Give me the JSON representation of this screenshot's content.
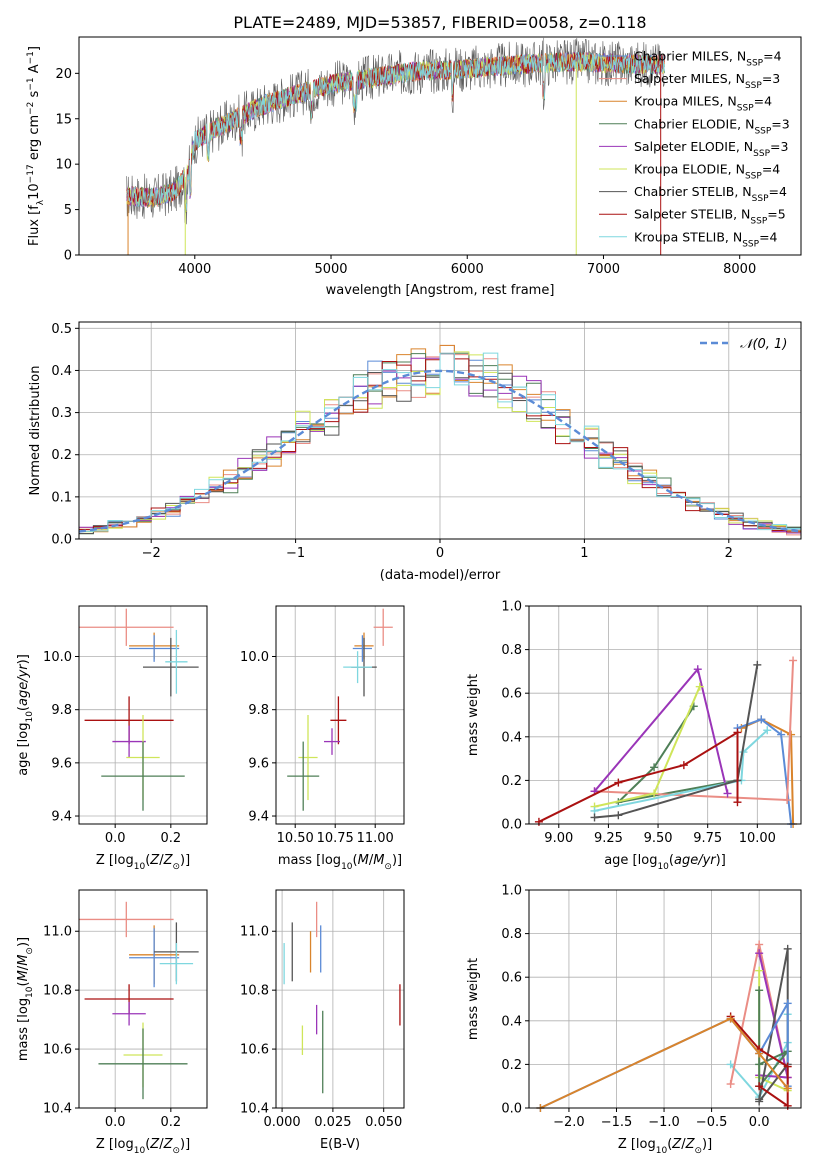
{
  "figure": {
    "title": "PLATE=2489, MJD=53857, FIBERID=0058, z=0.118"
  },
  "colors": {
    "chabrier_miles": "#5b8bd6",
    "salpeter_miles": "#ea8d85",
    "kroupa_miles": "#d9842c",
    "chabrier_elodie": "#4f7f57",
    "salpeter_elodie": "#9a35b8",
    "kroupa_elodie": "#cfe55a",
    "chabrier_stelib": "#555555",
    "salpeter_stelib": "#aa1111",
    "kroupa_stelib": "#7fd7df"
  },
  "chart_data": [
    {
      "id": "spectrum",
      "type": "line",
      "title": "PLATE=2489, MJD=53857, FIBERID=0058, z=0.118",
      "xlabel": "wavelength [Angstrom, rest frame]",
      "ylabel": "Flux [f_λ 10^-17 erg cm^-2 s^-1 A^-1]",
      "xlim": [
        3150,
        8450
      ],
      "ylim": [
        0,
        24
      ],
      "xticks": [
        4000,
        5000,
        6000,
        7000,
        8000
      ],
      "yticks": [
        0,
        5,
        10,
        15,
        20
      ],
      "legend_position": "top-right",
      "series": [
        {
          "name": "Chabrier MILES, N_SSP=4",
          "color": "#5b8bd6"
        },
        {
          "name": "Salpeter MILES, N_SSP=3",
          "color": "#ea8d85"
        },
        {
          "name": "Kroupa MILES, N_SSP=4",
          "color": "#d9842c"
        },
        {
          "name": "Chabrier ELODIE, N_SSP=3",
          "color": "#4f7f57"
        },
        {
          "name": "Salpeter ELODIE, N_SSP=3",
          "color": "#9a35b8"
        },
        {
          "name": "Kroupa ELODIE, N_SSP=4",
          "color": "#cfe55a"
        },
        {
          "name": "Chabrier STELIB, N_SSP=4",
          "color": "#555555"
        },
        {
          "name": "Salpeter STELIB, N_SSP=5",
          "color": "#aa1111"
        },
        {
          "name": "Kroupa STELIB, N_SSP=4",
          "color": "#7fd7df"
        }
      ],
      "continuum": {
        "x": [
          3500,
          3700,
          3850,
          3950,
          4000,
          4100,
          4300,
          4500,
          4700,
          5000,
          5300,
          5600,
          6000,
          6400,
          6800,
          7200,
          7450
        ],
        "y": [
          6.5,
          6.3,
          7.0,
          9.0,
          12.5,
          13.5,
          15.0,
          16.5,
          17.5,
          18.8,
          19.5,
          20.2,
          20.5,
          21.0,
          21.3,
          21.0,
          21.0
        ]
      },
      "dips": [
        {
          "x": 3510,
          "y": 0
        },
        {
          "x": 3930,
          "y": 0
        },
        {
          "x": 6800,
          "y": 0
        },
        {
          "x": 7420,
          "y": 0
        }
      ]
    },
    {
      "id": "residuals",
      "type": "line",
      "xlabel": "(data-model)/error",
      "ylabel": "Normed distribution",
      "xlim": [
        -2.5,
        2.5
      ],
      "ylim": [
        0,
        0.515
      ],
      "xticks": [
        -2,
        -1,
        0,
        1,
        2
      ],
      "yticks": [
        0.0,
        0.1,
        0.2,
        0.3,
        0.4,
        0.5
      ],
      "grid": true,
      "legend_position": "top-right",
      "legend": "𝒩(0, 1)",
      "normal_color": "#5b8bd6",
      "bin_width": 0.1,
      "series": [
        {
          "color": "#5b8bd6",
          "seed": 1
        },
        {
          "color": "#ea8d85",
          "seed": 2
        },
        {
          "color": "#d9842c",
          "seed": 3
        },
        {
          "color": "#4f7f57",
          "seed": 4
        },
        {
          "color": "#9a35b8",
          "seed": 5
        },
        {
          "color": "#cfe55a",
          "seed": 6
        },
        {
          "color": "#555555",
          "seed": 7
        },
        {
          "color": "#aa1111",
          "seed": 8
        },
        {
          "color": "#7fd7df",
          "seed": 9
        }
      ]
    },
    {
      "id": "age-z",
      "type": "scatter",
      "xlabel": "Z [log10(Z/Z⊙)]",
      "ylabel": "age [log10(age/yr)]",
      "xlim": [
        -0.13,
        0.33
      ],
      "ylim": [
        9.37,
        10.19
      ],
      "xticks": [
        0.0,
        0.2
      ],
      "yticks": [
        9.4,
        9.6,
        9.8,
        10.0
      ],
      "grid": true,
      "points": [
        {
          "x": 0.04,
          "y": 10.11,
          "xerr": 0.17,
          "yerr": 0.07,
          "color": "#ea8d85"
        },
        {
          "x": 0.14,
          "y": 10.04,
          "xerr": 0.09,
          "yerr": 0.05,
          "color": "#d9842c"
        },
        {
          "x": 0.14,
          "y": 10.03,
          "xerr": 0.09,
          "yerr": 0.05,
          "color": "#5b8bd6"
        },
        {
          "x": 0.2,
          "y": 9.96,
          "xerr": 0.1,
          "yerr": 0.11,
          "color": "#555555"
        },
        {
          "x": 0.22,
          "y": 9.98,
          "xerr": 0.04,
          "yerr": 0.12,
          "color": "#7fd7df"
        },
        {
          "x": 0.05,
          "y": 9.76,
          "xerr": 0.16,
          "yerr": 0.09,
          "color": "#aa1111"
        },
        {
          "x": 0.05,
          "y": 9.68,
          "xerr": 0.06,
          "yerr": 0.06,
          "color": "#9a35b8"
        },
        {
          "x": 0.1,
          "y": 9.62,
          "xerr": 0.06,
          "yerr": 0.16,
          "color": "#cfe55a"
        },
        {
          "x": 0.1,
          "y": 9.55,
          "xerr": 0.15,
          "yerr": 0.13,
          "color": "#4f7f57"
        }
      ]
    },
    {
      "id": "age-mass",
      "type": "scatter",
      "xlabel": "mass [log10(M/M⊙)]",
      "ylabel": "",
      "xlim": [
        10.38,
        11.18
      ],
      "ylim": [
        9.37,
        10.19
      ],
      "xticks": [
        10.5,
        10.75,
        11.0
      ],
      "yticks": [
        9.4,
        9.6,
        9.8,
        10.0
      ],
      "grid": true,
      "points": [
        {
          "x": 11.05,
          "y": 10.11,
          "xerr": 0.06,
          "yerr": 0.07,
          "color": "#ea8d85"
        },
        {
          "x": 10.93,
          "y": 10.04,
          "xerr": 0.06,
          "yerr": 0.05,
          "color": "#d9842c"
        },
        {
          "x": 10.92,
          "y": 10.03,
          "xerr": 0.06,
          "yerr": 0.05,
          "color": "#5b8bd6"
        },
        {
          "x": 10.93,
          "y": 9.96,
          "xerr": 0.08,
          "yerr": 0.11,
          "color": "#555555"
        },
        {
          "x": 10.89,
          "y": 9.96,
          "xerr": 0.09,
          "yerr": 0.06,
          "color": "#7fd7df"
        },
        {
          "x": 10.77,
          "y": 9.76,
          "xerr": 0.05,
          "yerr": 0.09,
          "color": "#aa1111"
        },
        {
          "x": 10.73,
          "y": 9.68,
          "xerr": 0.05,
          "yerr": 0.05,
          "color": "#9a35b8"
        },
        {
          "x": 10.58,
          "y": 9.62,
          "xerr": 0.06,
          "yerr": 0.16,
          "color": "#cfe55a"
        },
        {
          "x": 10.55,
          "y": 9.55,
          "xerr": 0.1,
          "yerr": 0.13,
          "color": "#4f7f57"
        }
      ]
    },
    {
      "id": "weight-age",
      "type": "line",
      "xlabel": "age [log10(age/yr)]",
      "ylabel": "mass weight",
      "xlim": [
        8.85,
        10.22
      ],
      "ylim": [
        0,
        1
      ],
      "xticks": [
        9.0,
        9.25,
        9.5,
        9.75,
        10.0
      ],
      "yticks": [
        0.0,
        0.2,
        0.4,
        0.6,
        0.8,
        1.0
      ],
      "grid": true,
      "series": [
        {
          "color": "#4f7f57",
          "points": [
            [
              9.9,
              0.2
            ],
            [
              9.3,
              0.1
            ],
            [
              9.48,
              0.26
            ],
            [
              9.68,
              0.54
            ]
          ]
        },
        {
          "color": "#d9842c",
          "points": [
            [
              9.92,
              0.44
            ],
            [
              10.02,
              0.48
            ],
            [
              10.17,
              0.41
            ],
            [
              10.18,
              0.0
            ]
          ]
        },
        {
          "color": "#5b8bd6",
          "points": [
            [
              9.9,
              0.44
            ],
            [
              10.02,
              0.48
            ],
            [
              10.12,
              0.41
            ],
            [
              10.17,
              0.0
            ]
          ]
        },
        {
          "color": "#ea8d85",
          "points": [
            [
              9.18,
              0.15
            ],
            [
              10.15,
              0.11
            ],
            [
              10.18,
              0.75
            ]
          ]
        },
        {
          "color": "#9a35b8",
          "points": [
            [
              9.18,
              0.15
            ],
            [
              9.7,
              0.71
            ],
            [
              9.85,
              0.14
            ]
          ]
        },
        {
          "color": "#cfe55a",
          "points": [
            [
              9.18,
              0.08
            ],
            [
              9.48,
              0.14
            ],
            [
              9.71,
              0.63
            ]
          ]
        },
        {
          "color": "#7fd7df",
          "points": [
            [
              9.18,
              0.06
            ],
            [
              9.92,
              0.2
            ],
            [
              9.93,
              0.33
            ],
            [
              10.05,
              0.43
            ]
          ]
        },
        {
          "color": "#555555",
          "points": [
            [
              9.18,
              0.03
            ],
            [
              9.3,
              0.04
            ],
            [
              9.9,
              0.2
            ],
            [
              10.0,
              0.73
            ]
          ]
        },
        {
          "color": "#aa1111",
          "points": [
            [
              8.9,
              0.01
            ],
            [
              9.3,
              0.19
            ],
            [
              9.63,
              0.27
            ],
            [
              9.9,
              0.42
            ],
            [
              9.9,
              0.1
            ]
          ]
        }
      ]
    },
    {
      "id": "mass-z",
      "type": "scatter",
      "xlabel": "Z [log10(Z/Z⊙)]",
      "ylabel": "mass [log10(M/M⊙)]",
      "xlim": [
        -0.13,
        0.33
      ],
      "ylim": [
        10.4,
        11.14
      ],
      "xticks": [
        0.0,
        0.2
      ],
      "yticks": [
        10.4,
        10.6,
        10.8,
        11.0
      ],
      "grid": true,
      "points": [
        {
          "x": 0.04,
          "y": 11.04,
          "xerr": 0.17,
          "yerr": 0.06,
          "color": "#ea8d85"
        },
        {
          "x": 0.14,
          "y": 10.92,
          "xerr": 0.09,
          "yerr": 0.1,
          "color": "#d9842c"
        },
        {
          "x": 0.14,
          "y": 10.91,
          "xerr": 0.09,
          "yerr": 0.1,
          "color": "#5b8bd6"
        },
        {
          "x": 0.22,
          "y": 10.93,
          "xerr": 0.08,
          "yerr": 0.1,
          "color": "#555555"
        },
        {
          "x": 0.22,
          "y": 10.89,
          "xerr": 0.06,
          "yerr": 0.07,
          "color": "#7fd7df"
        },
        {
          "x": 0.05,
          "y": 10.77,
          "xerr": 0.16,
          "yerr": 0.05,
          "color": "#aa1111"
        },
        {
          "x": 0.05,
          "y": 10.72,
          "xerr": 0.06,
          "yerr": 0.04,
          "color": "#9a35b8"
        },
        {
          "x": 0.1,
          "y": 10.58,
          "xerr": 0.07,
          "yerr": 0.11,
          "color": "#cfe55a"
        },
        {
          "x": 0.1,
          "y": 10.55,
          "xerr": 0.16,
          "yerr": 0.12,
          "color": "#4f7f57"
        }
      ]
    },
    {
      "id": "mass-ebv",
      "type": "scatter",
      "xlabel": "E(B-V)",
      "ylabel": "",
      "xlim": [
        -0.003,
        0.06
      ],
      "ylim": [
        10.4,
        11.14
      ],
      "xticks": [
        0.0,
        0.025,
        0.05
      ],
      "yticks": [
        10.4,
        10.6,
        10.8,
        11.0
      ],
      "grid": true,
      "points": [
        {
          "x": 0.001,
          "y": 10.89,
          "xerr": 0,
          "yerr": 0.07,
          "color": "#7fd7df"
        },
        {
          "x": 0.005,
          "y": 10.93,
          "xerr": 0,
          "yerr": 0.1,
          "color": "#555555"
        },
        {
          "x": 0.01,
          "y": 10.63,
          "xerr": 0,
          "yerr": 0.05,
          "color": "#cfe55a"
        },
        {
          "x": 0.014,
          "y": 10.93,
          "xerr": 0,
          "yerr": 0.07,
          "color": "#d9842c"
        },
        {
          "x": 0.017,
          "y": 11.04,
          "xerr": 0,
          "yerr": 0.06,
          "color": "#ea8d85"
        },
        {
          "x": 0.017,
          "y": 10.7,
          "xerr": 0,
          "yerr": 0.05,
          "color": "#9a35b8"
        },
        {
          "x": 0.019,
          "y": 10.94,
          "xerr": 0,
          "yerr": 0.08,
          "color": "#5b8bd6"
        },
        {
          "x": 0.02,
          "y": 10.59,
          "xerr": 0,
          "yerr": 0.14,
          "color": "#4f7f57"
        },
        {
          "x": 0.058,
          "y": 10.75,
          "xerr": 0,
          "yerr": 0.07,
          "color": "#aa1111"
        }
      ]
    },
    {
      "id": "weight-z",
      "type": "line",
      "xlabel": "Z [log10(Z/Z⊙)]",
      "ylabel": "mass weight",
      "xlim": [
        -2.42,
        0.44
      ],
      "ylim": [
        0,
        1
      ],
      "xticks": [
        -2.0,
        -1.5,
        -1.0,
        -0.5,
        0.0
      ],
      "yticks": [
        0.0,
        0.2,
        0.4,
        0.6,
        0.8,
        1.0
      ],
      "grid": true,
      "series": [
        {
          "color": "#7fd7df",
          "points": [
            [
              -0.3,
              0.2
            ],
            [
              0.0,
              0.05
            ],
            [
              0.3,
              0.3
            ],
            [
              0.3,
              0.43
            ]
          ]
        },
        {
          "color": "#ea8d85",
          "points": [
            [
              -0.3,
              0.11
            ],
            [
              0.0,
              0.75
            ],
            [
              0.3,
              0.14
            ]
          ]
        },
        {
          "color": "#9a35b8",
          "points": [
            [
              0.0,
              0.71
            ],
            [
              0.3,
              0.14
            ],
            [
              0.0,
              0.15
            ]
          ]
        },
        {
          "color": "#cfe55a",
          "points": [
            [
              0.0,
              0.63
            ],
            [
              0.0,
              0.14
            ],
            [
              0.3,
              0.08
            ]
          ]
        },
        {
          "color": "#4f7f57",
          "points": [
            [
              0.0,
              0.54
            ],
            [
              0.0,
              0.1
            ],
            [
              0.3,
              0.26
            ],
            [
              0.0,
              0.2
            ]
          ]
        },
        {
          "color": "#555555",
          "points": [
            [
              0.0,
              0.04
            ],
            [
              0.3,
              0.73
            ],
            [
              0.3,
              0.2
            ],
            [
              0.0,
              0.03
            ]
          ]
        },
        {
          "color": "#5b8bd6",
          "points": [
            [
              -2.3,
              0.0
            ],
            [
              -0.3,
              0.41
            ],
            [
              0.0,
              0.25
            ],
            [
              0.3,
              0.48
            ],
            [
              0.3,
              0.1
            ]
          ]
        },
        {
          "color": "#aa1111",
          "points": [
            [
              -0.3,
              0.42
            ],
            [
              0.0,
              0.27
            ],
            [
              0.3,
              0.19
            ],
            [
              0.3,
              0.01
            ],
            [
              0.0,
              0.1
            ]
          ]
        },
        {
          "color": "#d9842c",
          "points": [
            [
              -2.3,
              0.0
            ],
            [
              -0.3,
              0.41
            ],
            [
              0.0,
              0.25
            ],
            [
              0.3,
              0.09
            ]
          ]
        }
      ]
    }
  ]
}
